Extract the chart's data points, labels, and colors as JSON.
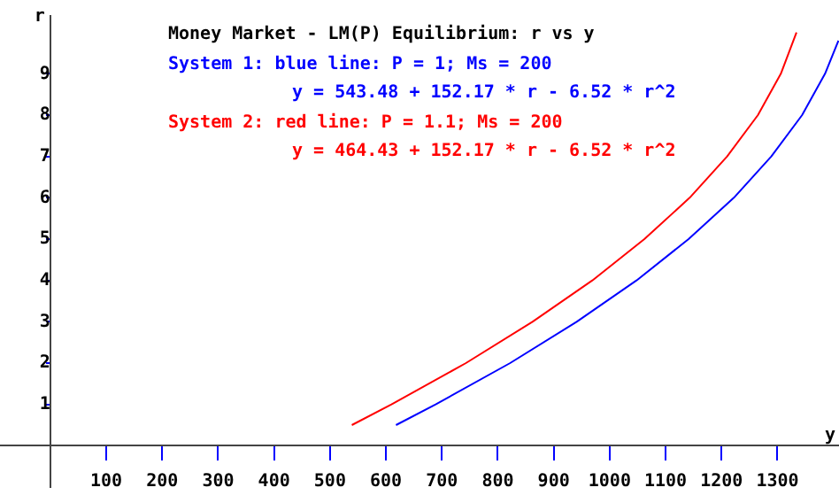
{
  "chart_data": {
    "type": "line",
    "title": "Money Market - LM(P) Equilibrium: r vs y",
    "xlabel": "y",
    "ylabel": "r",
    "xlim": [
      -90,
      1410
    ],
    "ylim": [
      -1,
      10.4
    ],
    "xticks": [
      100,
      200,
      300,
      400,
      500,
      600,
      700,
      800,
      900,
      1000,
      1100,
      1200,
      1300
    ],
    "yticks": [
      1,
      2,
      3,
      4,
      5,
      6,
      7,
      8,
      9
    ],
    "grid": false,
    "legend": "top left",
    "marker": "none",
    "line_style": "solid",
    "series": [
      {
        "name": "System 1: blue line: P = 1; Ms = 200",
        "color": "#0000ff",
        "x": [
          618,
          689,
          822,
          941,
          1048,
          1141,
          1222,
          1289,
          1344,
          1385,
          1409
        ],
        "values": [
          0.5,
          1,
          2,
          3,
          4,
          5,
          6,
          7,
          8,
          9,
          9.8
        ]
      },
      {
        "name": "System 2: red line: P = 1.1; Ms = 200",
        "color": "#ff0000",
        "x": [
          539,
          610,
          743,
          862,
          969,
          1062,
          1143,
          1210,
          1265,
          1306,
          1334
        ],
        "values": [
          0.5,
          1,
          2,
          3,
          4,
          5,
          6,
          7,
          8,
          9,
          10
        ]
      }
    ],
    "annotations": [
      "y = 543.48 + 152.17 * r - 6.52 * r^2",
      "y = 464.43 + 152.17 * r - 6.52 * r^2"
    ]
  }
}
